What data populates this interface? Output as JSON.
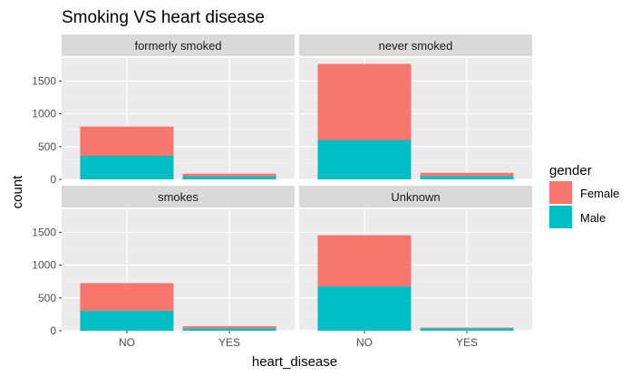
{
  "chart_data": {
    "type": "bar",
    "stacked": true,
    "title": "Smoking VS heart disease",
    "xlabel": "heart_disease",
    "ylabel": "count",
    "categories": [
      "NO",
      "YES"
    ],
    "yticks": [
      0,
      500,
      1000,
      1500
    ],
    "ylim": [
      0,
      1850
    ],
    "grid": true,
    "legend": {
      "title": "gender",
      "position": "right",
      "entries": [
        {
          "name": "Female",
          "color": "#F8766D"
        },
        {
          "name": "Male",
          "color": "#00BFC4"
        }
      ]
    },
    "facets": [
      {
        "label": "formerly smoked",
        "series": [
          {
            "name": "Male",
            "values": [
              360,
              48
            ]
          },
          {
            "name": "Female",
            "values": [
              445,
              40
            ]
          }
        ]
      },
      {
        "label": "never smoked",
        "series": [
          {
            "name": "Male",
            "values": [
              600,
              52
            ]
          },
          {
            "name": "Female",
            "values": [
              1160,
              48
            ]
          }
        ]
      },
      {
        "label": "smokes",
        "series": [
          {
            "name": "Male",
            "values": [
              305,
              38
            ]
          },
          {
            "name": "Female",
            "values": [
              420,
              30
            ]
          }
        ]
      },
      {
        "label": "Unknown",
        "series": [
          {
            "name": "Male",
            "values": [
              675,
              35
            ]
          },
          {
            "name": "Female",
            "values": [
              780,
              12
            ]
          }
        ]
      }
    ]
  }
}
